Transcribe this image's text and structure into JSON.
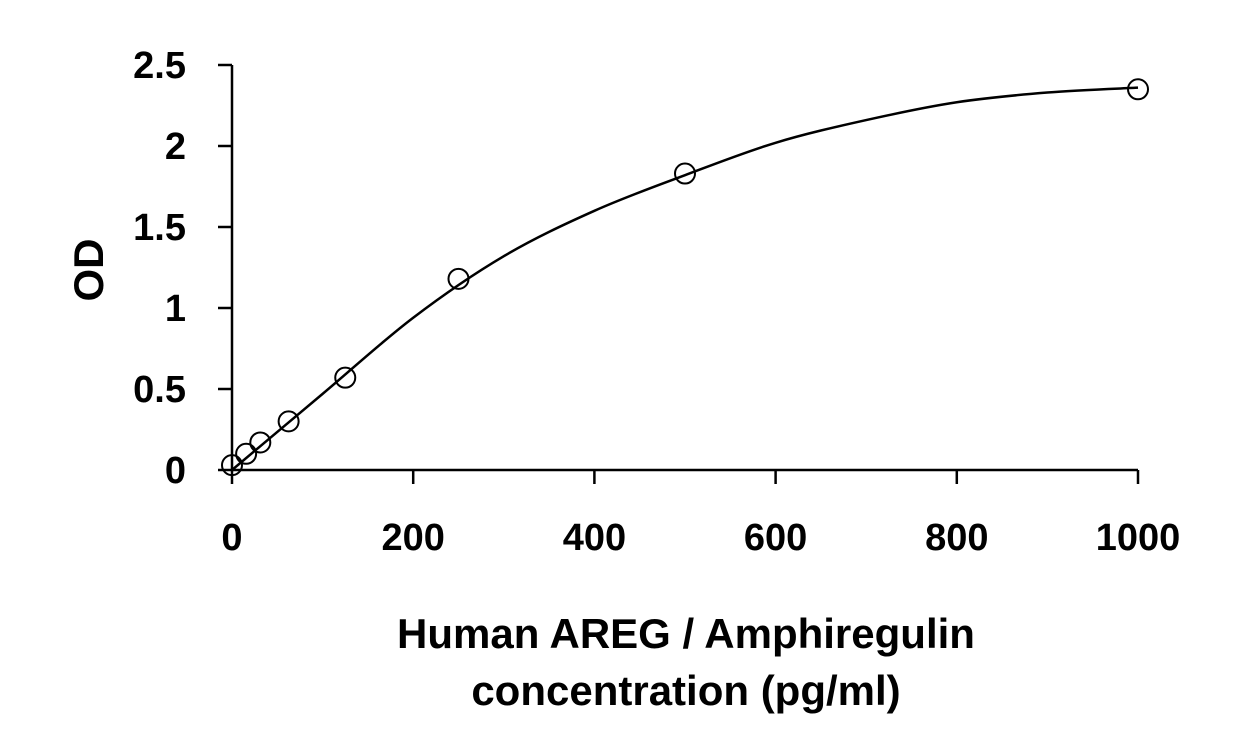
{
  "chart_data": {
    "type": "scatter",
    "title": "",
    "xlabel_lines": [
      "Human AREG / Amphiregulin",
      "concentration (pg/ml)"
    ],
    "ylabel": "OD",
    "xlim": [
      0,
      1000
    ],
    "ylim": [
      0,
      2.5
    ],
    "x_ticks": [
      0,
      200,
      400,
      600,
      800,
      1000
    ],
    "y_ticks": [
      0,
      0.5,
      1,
      1.5,
      2,
      2.5
    ],
    "x_tick_labels": [
      "0",
      "200",
      "400",
      "600",
      "800",
      "1000"
    ],
    "y_tick_labels": [
      "0",
      "0.5",
      "1",
      "1.5",
      "2",
      "2.5"
    ],
    "grid": false,
    "series": [
      {
        "marker": "open-circle",
        "x": [
          0,
          15.6,
          31.25,
          62.5,
          125,
          250,
          500,
          1000
        ],
        "y": [
          0.03,
          0.1,
          0.17,
          0.3,
          0.57,
          1.18,
          1.83,
          2.35
        ]
      }
    ],
    "fit_curve": {
      "type": "smooth",
      "x": [
        0,
        100,
        200,
        300,
        400,
        500,
        600,
        700,
        800,
        900,
        1000
      ],
      "y": [
        0.0,
        0.47,
        0.94,
        1.32,
        1.6,
        1.82,
        2.02,
        2.16,
        2.27,
        2.33,
        2.36
      ]
    }
  }
}
